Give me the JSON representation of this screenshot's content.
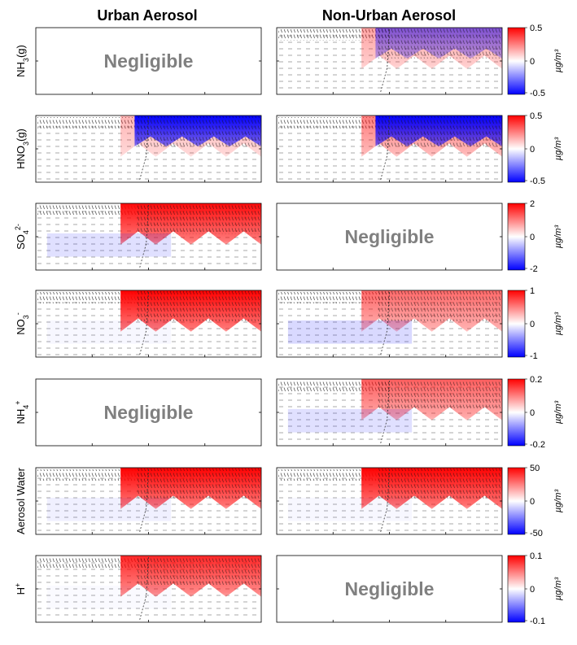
{
  "chart_data": {
    "type": "heatmap",
    "columns": [
      "Urban Aerosol",
      "Non-Urban Aerosol"
    ],
    "negligible_text": "Negligible",
    "units": "µg/m³",
    "colormap": {
      "negative": "#0000ff",
      "zero": "#ffffff",
      "positive": "#ff0000"
    },
    "rows": [
      {
        "label": "NH",
        "sub": "3",
        "sup": "",
        "suffix": "(g)",
        "cbar": {
          "max_label": "0.5",
          "zero_label": "0",
          "min_label": "-0.5"
        },
        "panels": [
          {
            "negligible": true,
            "pos": 0,
            "neg": 0
          },
          {
            "negligible": false,
            "pos": 0.15,
            "neg": 0.35
          }
        ]
      },
      {
        "label": "HNO",
        "sub": "3",
        "sup": "",
        "suffix": "(g)",
        "cbar": {
          "max_label": "0.5",
          "zero_label": "0",
          "min_label": "-0.5"
        },
        "panels": [
          {
            "negligible": false,
            "pos": 0.05,
            "neg": 1.0
          },
          {
            "negligible": false,
            "pos": 0.35,
            "neg": 1.0
          }
        ]
      },
      {
        "label": "SO",
        "sub": "4",
        "sup": "2-",
        "suffix": "",
        "cbar": {
          "max_label": "2",
          "zero_label": "0",
          "min_label": "-2"
        },
        "panels": [
          {
            "negligible": false,
            "pos": 0.95,
            "neg": 0.2
          },
          {
            "negligible": true,
            "pos": 0,
            "neg": 0
          }
        ]
      },
      {
        "label": "NO",
        "sub": "3",
        "sup": "-",
        "suffix": "",
        "cbar": {
          "max_label": "1",
          "zero_label": "0",
          "min_label": "-1"
        },
        "panels": [
          {
            "negligible": false,
            "pos": 1.0,
            "neg": 0.05
          },
          {
            "negligible": false,
            "pos": 0.45,
            "neg": 0.25
          }
        ]
      },
      {
        "label": "NH",
        "sub": "4",
        "sup": "+",
        "suffix": "",
        "cbar": {
          "max_label": "0.2",
          "zero_label": "0",
          "min_label": "-0.2"
        },
        "panels": [
          {
            "negligible": true,
            "pos": 0,
            "neg": 0
          },
          {
            "negligible": false,
            "pos": 0.5,
            "neg": 0.2
          }
        ]
      },
      {
        "label": "Aerosol Water",
        "sub": "",
        "sup": "",
        "suffix": "",
        "cbar": {
          "max_label": "50",
          "zero_label": "0",
          "min_label": "-50"
        },
        "panels": [
          {
            "negligible": false,
            "pos": 1.0,
            "neg": 0.1
          },
          {
            "negligible": false,
            "pos": 1.0,
            "neg": 0.05
          }
        ]
      },
      {
        "label": "H",
        "sub": "",
        "sup": "+",
        "suffix": "",
        "cbar": {
          "max_label": "0.1",
          "zero_label": "0",
          "min_label": "-0.1"
        },
        "panels": [
          {
            "negligible": false,
            "pos": 0.8,
            "neg": 0.03
          },
          {
            "negligible": true,
            "pos": 0,
            "neg": 0
          }
        ]
      }
    ]
  }
}
